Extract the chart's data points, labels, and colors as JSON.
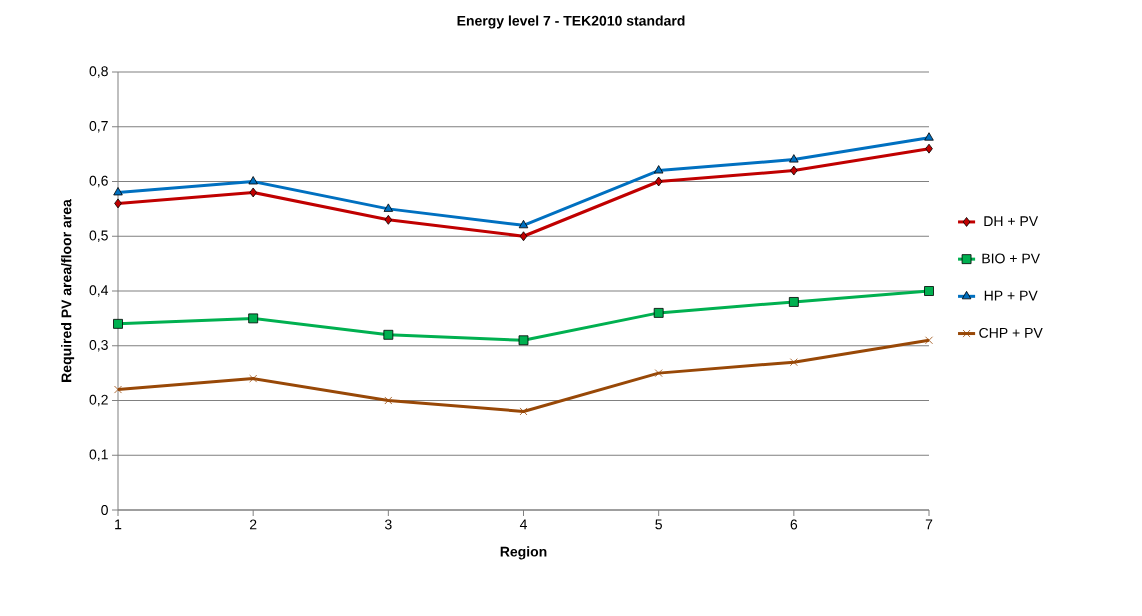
{
  "chart_data": {
    "type": "line",
    "title": "Energy level 7 - TEK2010 standard",
    "xlabel": "Region",
    "ylabel": "Required PV area/floor area",
    "x": [
      1,
      2,
      3,
      4,
      5,
      6,
      7
    ],
    "series": [
      {
        "name": "DH + PV",
        "color": "#c00000",
        "marker": "diamond",
        "values": [
          0.56,
          0.58,
          0.53,
          0.5,
          0.6,
          0.62,
          0.66
        ]
      },
      {
        "name": "BIO + PV",
        "color": "#00b050",
        "marker": "square",
        "values": [
          0.34,
          0.35,
          0.32,
          0.31,
          0.36,
          0.38,
          0.4
        ]
      },
      {
        "name": "HP + PV",
        "color": "#0070c0",
        "marker": "triangle",
        "values": [
          0.58,
          0.6,
          0.55,
          0.52,
          0.62,
          0.64,
          0.68
        ]
      },
      {
        "name": "CHP + PV",
        "color": "#984807",
        "marker": "cross",
        "values": [
          0.22,
          0.24,
          0.2,
          0.18,
          0.25,
          0.27,
          0.31
        ]
      }
    ],
    "xlim": [
      1,
      7
    ],
    "xticks": [
      1,
      2,
      3,
      4,
      5,
      6,
      7
    ],
    "ylim": [
      0,
      0.8
    ],
    "yticks": [
      0,
      {
        "value": 0.1,
        "label": "0,1"
      },
      {
        "value": 0.2,
        "label": "0,2"
      },
      {
        "value": 0.3,
        "label": "0,3"
      },
      {
        "value": 0.4,
        "label": "0,4"
      },
      {
        "value": 0.5,
        "label": "0,5"
      },
      {
        "value": 0.6,
        "label": "0,6"
      },
      {
        "value": 0.7,
        "label": "0,7"
      },
      {
        "value": 0.8,
        "label": "0,8"
      }
    ],
    "grid": "y",
    "legend": "right",
    "line_style": "solid"
  }
}
